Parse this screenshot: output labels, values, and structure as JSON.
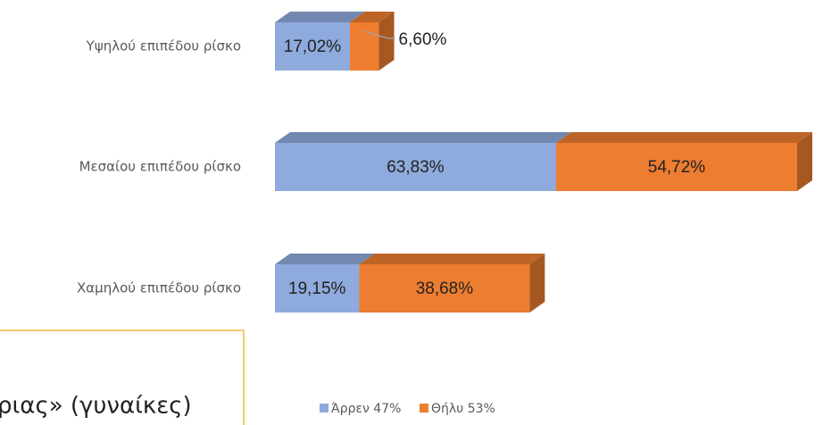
{
  "chart_data": {
    "type": "bar3d_stacked_horizontal",
    "categories": [
      "Υψηλού επιπέδου ρίσκο",
      "Μεσαίου επιπέδου ρίσκο",
      "Χαμηλού επιπέδου ρίσκο"
    ],
    "series": [
      {
        "name": "Άρρεν 47%",
        "color": "#8faadc",
        "values": [
          17.02,
          63.83,
          19.15
        ],
        "value_labels": [
          "17,02%",
          "63,83%",
          "19,15%"
        ]
      },
      {
        "name": "Θήλυ 53%",
        "color": "#ed7d31",
        "values": [
          6.6,
          54.72,
          38.68
        ],
        "value_labels": [
          "6,60%",
          "54,72%",
          "38,68%"
        ]
      }
    ],
    "annotation": "ριας» (γυναίκες)"
  }
}
